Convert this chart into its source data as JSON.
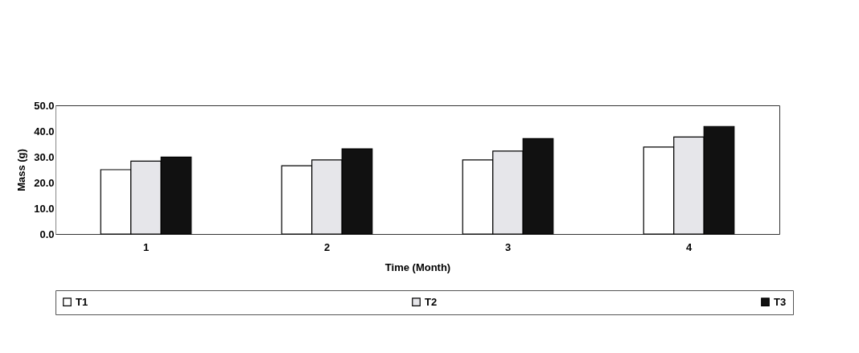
{
  "chart_data": {
    "type": "bar",
    "xlabel": "Time (Month)",
    "ylabel": "Mass (g)",
    "categories": [
      "1",
      "2",
      "3",
      "4"
    ],
    "series": [
      {
        "name": "T1",
        "color": "#ffffff",
        "values": [
          25.0,
          26.5,
          28.8,
          33.8
        ]
      },
      {
        "name": "T2",
        "color": "#e6e6ea",
        "values": [
          28.3,
          28.8,
          32.2,
          37.7
        ]
      },
      {
        "name": "T3",
        "color": "#111111",
        "values": [
          29.9,
          33.1,
          37.1,
          41.8
        ]
      }
    ],
    "ylim": [
      0,
      50
    ],
    "yticks": [
      {
        "value": 0,
        "label": "0.0"
      },
      {
        "value": 10,
        "label": "10.0"
      },
      {
        "value": 20,
        "label": "20.0"
      },
      {
        "value": 30,
        "label": "30.0"
      },
      {
        "value": 40,
        "label": "40.0"
      },
      {
        "value": 50,
        "label": "50.0"
      }
    ],
    "grid": false,
    "legend": "bottom"
  }
}
